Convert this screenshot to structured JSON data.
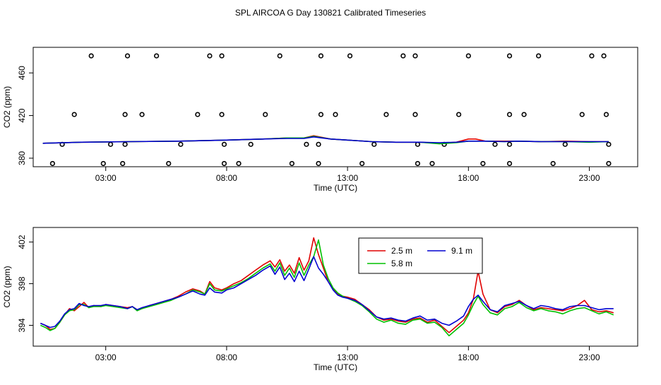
{
  "title": "SPL AIRCOA G  Day 130821  Calibrated Timeseries",
  "colors": {
    "s25": "#e00000",
    "s58": "#00c000",
    "s91": "#0000d0",
    "axis": "#000000"
  },
  "chart_data": [
    {
      "type": "scatter+line",
      "panel": "top",
      "xlabel": "Time (UTC)",
      "ylabel": "CO2 (ppm)",
      "xlim": [
        0,
        25
      ],
      "ylim": [
        372,
        484
      ],
      "x_ticks": [
        3,
        8,
        13,
        18,
        23
      ],
      "x_tick_labels": [
        "03:00",
        "08:00",
        "13:00",
        "18:00",
        "23:00"
      ],
      "y_ticks": [
        380,
        420,
        460
      ],
      "y_tick_labels": [
        "380",
        "420",
        "460"
      ],
      "points": [
        [
          2.4,
          476
        ],
        [
          3.9,
          476
        ],
        [
          5.1,
          476
        ],
        [
          7.3,
          476
        ],
        [
          7.8,
          476
        ],
        [
          10.2,
          476
        ],
        [
          11.9,
          476
        ],
        [
          13.1,
          476
        ],
        [
          15.3,
          476
        ],
        [
          15.8,
          476
        ],
        [
          18.0,
          476
        ],
        [
          19.7,
          476
        ],
        [
          20.9,
          476
        ],
        [
          23.1,
          476
        ],
        [
          23.6,
          476
        ],
        [
          1.7,
          421
        ],
        [
          3.8,
          421
        ],
        [
          4.5,
          421
        ],
        [
          6.8,
          421
        ],
        [
          7.8,
          421
        ],
        [
          9.6,
          421
        ],
        [
          11.9,
          421
        ],
        [
          12.5,
          421
        ],
        [
          14.6,
          421
        ],
        [
          15.8,
          421
        ],
        [
          17.6,
          421
        ],
        [
          19.7,
          421
        ],
        [
          20.3,
          421
        ],
        [
          22.7,
          421
        ],
        [
          23.7,
          421
        ],
        [
          1.2,
          393
        ],
        [
          3.2,
          393
        ],
        [
          3.8,
          393
        ],
        [
          6.1,
          393
        ],
        [
          7.9,
          393
        ],
        [
          9.0,
          393
        ],
        [
          11.3,
          393
        ],
        [
          11.8,
          393
        ],
        [
          14.1,
          393
        ],
        [
          15.9,
          393
        ],
        [
          17.0,
          393
        ],
        [
          19.1,
          393
        ],
        [
          19.7,
          393
        ],
        [
          22.0,
          393
        ],
        [
          23.8,
          393
        ],
        [
          0.8,
          375
        ],
        [
          2.9,
          375
        ],
        [
          3.7,
          375
        ],
        [
          5.6,
          375
        ],
        [
          7.9,
          375
        ],
        [
          8.5,
          375
        ],
        [
          10.7,
          375
        ],
        [
          11.8,
          375
        ],
        [
          13.6,
          375
        ],
        [
          15.9,
          375
        ],
        [
          16.5,
          375
        ],
        [
          18.6,
          375
        ],
        [
          19.7,
          375
        ],
        [
          21.5,
          375
        ],
        [
          23.8,
          375
        ]
      ],
      "lines": [
        {
          "name": "2.5 m",
          "color": "#e00000",
          "x": [
            0.4,
            2,
            4,
            6,
            8,
            9.5,
            10.5,
            11.2,
            11.6,
            12.3,
            13,
            14,
            15,
            16,
            16.8,
            17.5,
            18,
            18.3,
            18.7,
            19.5,
            20,
            21,
            22,
            23,
            23.8
          ],
          "y": [
            394,
            395,
            395.5,
            396,
            397,
            398,
            399,
            399,
            401,
            398,
            397,
            395.5,
            395,
            395,
            394,
            395,
            398,
            398,
            396,
            396,
            396,
            395.5,
            396,
            395.5,
            395.5
          ]
        },
        {
          "name": "5.8 m",
          "color": "#00c000",
          "x": [
            0.4,
            2,
            4,
            6,
            8,
            9.5,
            10.5,
            11.2,
            11.6,
            12.3,
            13,
            14,
            15,
            16,
            16.8,
            17.5,
            18,
            18.7,
            19.5,
            20,
            21,
            22,
            23,
            23.8
          ],
          "y": [
            394,
            395,
            395.5,
            396,
            397,
            398,
            399,
            399,
            400.5,
            398,
            397,
            395.5,
            395,
            395,
            393.5,
            394.5,
            396,
            396,
            395.5,
            396,
            395.5,
            395.5,
            395,
            395.5
          ]
        },
        {
          "name": "9.1 m",
          "color": "#0000d0",
          "x": [
            0.4,
            2,
            4,
            6,
            8,
            9.5,
            10.5,
            11.2,
            11.6,
            12.3,
            13,
            14,
            15,
            16,
            16.8,
            17.5,
            18,
            18.7,
            19.5,
            20,
            21,
            22,
            23,
            23.8
          ],
          "y": [
            394,
            395,
            395.5,
            396,
            397,
            398,
            398.5,
            398.5,
            400,
            398,
            397,
            395.5,
            395,
            395,
            394.5,
            395,
            396,
            396,
            395.5,
            396,
            395.5,
            395.5,
            395.5,
            395.5
          ]
        }
      ]
    },
    {
      "type": "line",
      "panel": "bottom",
      "xlabel": "Time (UTC)",
      "ylabel": "CO2 (ppm)",
      "xlim": [
        0,
        25
      ],
      "ylim": [
        392,
        403.4
      ],
      "x_ticks": [
        3,
        8,
        13,
        18,
        23
      ],
      "x_tick_labels": [
        "03:00",
        "08:00",
        "13:00",
        "18:00",
        "23:00"
      ],
      "y_ticks": [
        394,
        398,
        402
      ],
      "y_tick_labels": [
        "394",
        "398",
        "402"
      ],
      "legend": {
        "position": "top-center",
        "entries": [
          "2.5 m",
          "5.8 m",
          "9.1 m"
        ]
      },
      "series": [
        {
          "name": "2.5 m",
          "color": "#e00000",
          "x": [
            0.3,
            0.5,
            0.7,
            0.9,
            1.1,
            1.3,
            1.5,
            1.7,
            1.9,
            2.1,
            2.3,
            2.5,
            2.8,
            3.0,
            3.3,
            3.6,
            3.9,
            4.1,
            4.3,
            4.5,
            4.8,
            5.1,
            5.4,
            5.7,
            6.0,
            6.3,
            6.6,
            6.9,
            7.1,
            7.3,
            7.5,
            7.8,
            8.0,
            8.3,
            8.6,
            8.9,
            9.2,
            9.5,
            9.8,
            10.0,
            10.2,
            10.4,
            10.6,
            10.8,
            11.0,
            11.2,
            11.4,
            11.6,
            11.8,
            12.0,
            12.2,
            12.4,
            12.6,
            12.8,
            13.0,
            13.3,
            13.6,
            13.9,
            14.2,
            14.5,
            14.8,
            15.1,
            15.4,
            15.7,
            16.0,
            16.3,
            16.6,
            16.9,
            17.2,
            17.5,
            17.8,
            18.0,
            18.2,
            18.4,
            18.6,
            18.9,
            19.2,
            19.5,
            19.8,
            20.1,
            20.4,
            20.7,
            21.0,
            21.3,
            21.6,
            21.9,
            22.2,
            22.5,
            22.8,
            23.1,
            23.4,
            23.7,
            24.0
          ],
          "y": [
            394.2,
            394.0,
            393.6,
            393.7,
            394.3,
            395.0,
            395.6,
            395.4,
            395.8,
            396.2,
            395.7,
            395.9,
            395.8,
            396.0,
            395.9,
            395.8,
            395.7,
            395.8,
            395.5,
            395.6,
            395.9,
            396.1,
            396.3,
            396.5,
            396.8,
            397.2,
            397.5,
            397.3,
            397.0,
            398.2,
            397.6,
            397.4,
            397.6,
            398.0,
            398.3,
            398.8,
            399.3,
            399.8,
            400.2,
            399.6,
            400.3,
            399.2,
            399.8,
            399.0,
            400.5,
            399.3,
            400.2,
            402.4,
            400.8,
            399.5,
            398.2,
            397.5,
            397.0,
            396.8,
            396.7,
            396.5,
            396.0,
            395.5,
            394.8,
            394.5,
            394.6,
            394.4,
            394.3,
            394.6,
            394.7,
            394.3,
            394.5,
            393.9,
            393.3,
            393.9,
            394.5,
            395.2,
            396.5,
            399.2,
            397.0,
            395.5,
            395.2,
            395.8,
            396.0,
            396.4,
            395.9,
            395.5,
            395.7,
            395.6,
            395.5,
            395.4,
            395.6,
            395.9,
            396.4,
            395.5,
            395.3,
            395.4,
            395.2
          ]
        },
        {
          "name": "5.8 m",
          "color": "#00c000",
          "x": [
            0.3,
            0.5,
            0.7,
            0.9,
            1.1,
            1.3,
            1.5,
            1.7,
            1.9,
            2.1,
            2.3,
            2.5,
            2.8,
            3.0,
            3.3,
            3.6,
            3.9,
            4.1,
            4.3,
            4.5,
            4.8,
            5.1,
            5.4,
            5.7,
            6.0,
            6.3,
            6.6,
            6.9,
            7.1,
            7.3,
            7.5,
            7.8,
            8.0,
            8.3,
            8.6,
            8.9,
            9.2,
            9.5,
            9.8,
            10.0,
            10.2,
            10.4,
            10.6,
            10.8,
            11.0,
            11.2,
            11.4,
            11.6,
            11.8,
            12.0,
            12.2,
            12.4,
            12.6,
            12.8,
            13.0,
            13.3,
            13.6,
            13.9,
            14.2,
            14.5,
            14.8,
            15.1,
            15.4,
            15.7,
            16.0,
            16.3,
            16.6,
            16.9,
            17.2,
            17.5,
            17.8,
            18.0,
            18.2,
            18.4,
            18.6,
            18.9,
            19.2,
            19.5,
            19.8,
            20.1,
            20.4,
            20.7,
            21.0,
            21.3,
            21.6,
            21.9,
            22.2,
            22.5,
            22.8,
            23.1,
            23.4,
            23.7,
            24.0
          ],
          "y": [
            394.0,
            393.8,
            393.5,
            393.7,
            394.3,
            395.0,
            395.4,
            395.5,
            396.0,
            396.0,
            395.7,
            395.8,
            395.8,
            395.9,
            395.8,
            395.7,
            395.6,
            395.8,
            395.4,
            395.6,
            395.8,
            396.0,
            396.2,
            396.4,
            396.7,
            397.0,
            397.4,
            397.2,
            397.0,
            398.0,
            397.4,
            397.3,
            397.5,
            397.8,
            398.1,
            398.5,
            399.0,
            399.5,
            399.9,
            399.2,
            400.0,
            398.8,
            399.5,
            398.6,
            400.0,
            398.8,
            399.8,
            400.6,
            402.2,
            399.8,
            398.5,
            397.6,
            397.1,
            396.8,
            396.6,
            396.3,
            395.9,
            395.3,
            394.6,
            394.3,
            394.5,
            394.2,
            394.1,
            394.5,
            394.6,
            394.2,
            394.3,
            393.8,
            393.0,
            393.6,
            394.2,
            395.0,
            396.0,
            396.8,
            396.0,
            395.2,
            395.0,
            395.6,
            395.8,
            396.2,
            395.7,
            395.4,
            395.6,
            395.4,
            395.3,
            395.1,
            395.4,
            395.6,
            395.7,
            395.4,
            395.1,
            395.3,
            395.0
          ]
        },
        {
          "name": "9.1 m",
          "color": "#0000d0",
          "x": [
            0.3,
            0.5,
            0.7,
            0.9,
            1.1,
            1.3,
            1.5,
            1.7,
            1.9,
            2.1,
            2.3,
            2.5,
            2.8,
            3.0,
            3.3,
            3.6,
            3.9,
            4.1,
            4.3,
            4.5,
            4.8,
            5.1,
            5.4,
            5.7,
            6.0,
            6.3,
            6.6,
            6.9,
            7.1,
            7.3,
            7.5,
            7.8,
            8.0,
            8.3,
            8.6,
            8.9,
            9.2,
            9.5,
            9.8,
            10.0,
            10.2,
            10.4,
            10.6,
            10.8,
            11.0,
            11.2,
            11.4,
            11.6,
            11.8,
            12.0,
            12.2,
            12.4,
            12.6,
            12.8,
            13.0,
            13.3,
            13.6,
            13.9,
            14.2,
            14.5,
            14.8,
            15.1,
            15.4,
            15.7,
            16.0,
            16.3,
            16.6,
            16.9,
            17.2,
            17.5,
            17.8,
            18.0,
            18.2,
            18.4,
            18.6,
            18.9,
            19.2,
            19.5,
            19.8,
            20.1,
            20.4,
            20.7,
            21.0,
            21.3,
            21.6,
            21.9,
            22.2,
            22.5,
            22.8,
            23.1,
            23.4,
            23.7,
            24.0
          ],
          "y": [
            394.2,
            394.0,
            393.8,
            393.9,
            394.4,
            395.1,
            395.5,
            395.6,
            396.1,
            395.9,
            395.8,
            395.9,
            395.9,
            396.0,
            395.9,
            395.8,
            395.6,
            395.8,
            395.5,
            395.7,
            395.9,
            396.1,
            396.3,
            396.5,
            396.7,
            397.0,
            397.3,
            397.0,
            396.9,
            397.6,
            397.2,
            397.1,
            397.4,
            397.6,
            398.0,
            398.4,
            398.8,
            399.3,
            399.7,
            398.9,
            399.6,
            398.4,
            399.0,
            398.2,
            399.2,
            398.3,
            399.4,
            400.6,
            399.5,
            398.9,
            398.2,
            397.4,
            396.9,
            396.7,
            396.6,
            396.4,
            396.0,
            395.4,
            394.8,
            394.6,
            394.7,
            394.5,
            394.4,
            394.7,
            394.9,
            394.5,
            394.6,
            394.2,
            394.0,
            394.4,
            394.9,
            395.8,
            396.5,
            396.9,
            396.3,
            395.5,
            395.3,
            395.9,
            396.1,
            396.3,
            395.9,
            395.6,
            395.9,
            395.8,
            395.6,
            395.5,
            395.8,
            395.9,
            395.9,
            395.7,
            395.5,
            395.6,
            395.6
          ]
        }
      ]
    }
  ]
}
